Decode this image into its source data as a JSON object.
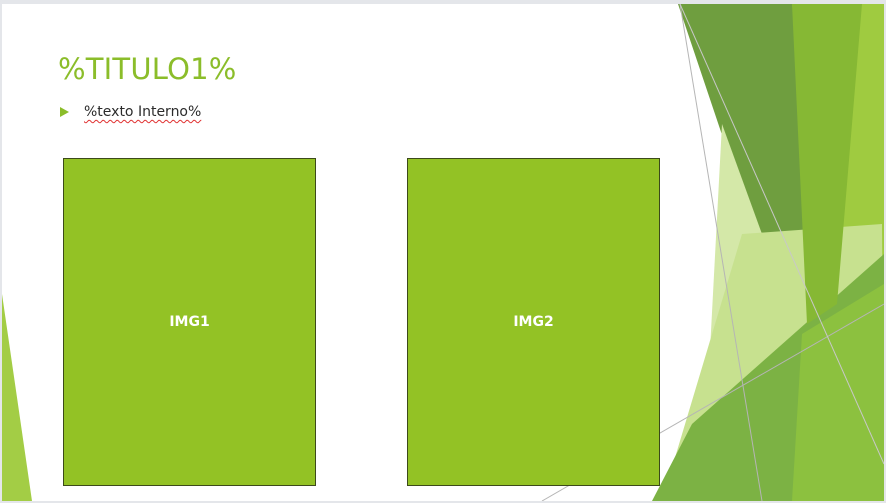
{
  "slide": {
    "title": "%TITULO1%",
    "bullet_text": "%texto Interno%",
    "placeholders": [
      {
        "label": "IMG1"
      },
      {
        "label": "IMG2"
      }
    ]
  },
  "colors": {
    "accent": "#8bbd2a",
    "placeholder_fill": "#93c225",
    "dark_green": "#5f9331",
    "light_green": "#d4e8a8"
  },
  "icons": {
    "bullet": "triangle-bullet-icon"
  }
}
